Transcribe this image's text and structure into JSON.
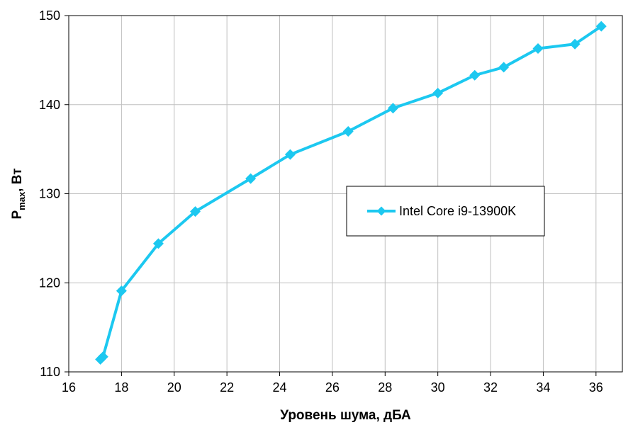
{
  "chart_data": {
    "type": "line",
    "title": "",
    "xlabel": "Уровень шума, дБА",
    "ylabel": {
      "main": "P",
      "sub": "max",
      "suffix": ", Вт"
    },
    "xlim": [
      16,
      37
    ],
    "ylim": [
      110,
      150
    ],
    "xticks": [
      16,
      18,
      20,
      22,
      24,
      26,
      28,
      30,
      32,
      34,
      36
    ],
    "yticks": [
      110,
      120,
      130,
      140,
      150
    ],
    "grid": true,
    "legend_position": "right-center",
    "series": [
      {
        "name": "Intel Core i9-13900K",
        "color": "#1cc8f0",
        "marker": "diamond",
        "x": [
          17.2,
          17.3,
          18.0,
          19.4,
          20.8,
          22.9,
          24.4,
          26.6,
          28.3,
          30.0,
          31.4,
          32.5,
          33.8,
          35.2,
          36.2
        ],
        "y": [
          111.4,
          111.7,
          119.1,
          124.4,
          128.0,
          131.7,
          134.4,
          137.0,
          139.6,
          141.3,
          143.3,
          144.2,
          146.3,
          146.8,
          148.8
        ]
      }
    ]
  }
}
